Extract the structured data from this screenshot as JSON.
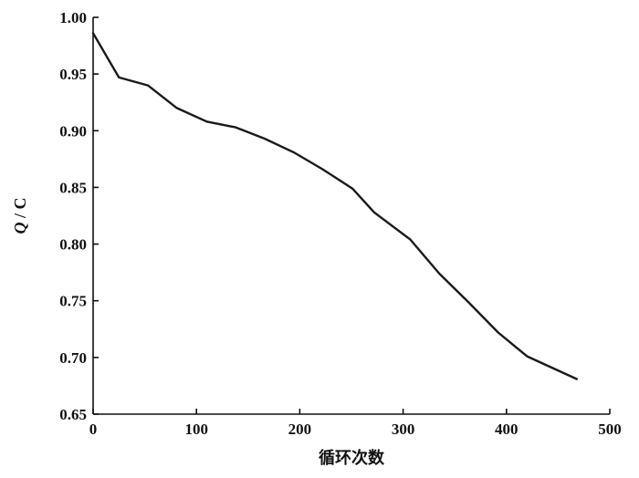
{
  "chart_data": {
    "type": "line",
    "title": "",
    "xlabel": "循环次数",
    "ylabel_italic": "Q",
    "ylabel_unit": " / C",
    "xlim": [
      0,
      500
    ],
    "ylim": [
      0.65,
      1.0
    ],
    "xticks": [
      {
        "value": 0,
        "label": "0"
      },
      {
        "value": 100,
        "label": "100"
      },
      {
        "value": 200,
        "label": "200"
      },
      {
        "value": 300,
        "label": "300"
      },
      {
        "value": 400,
        "label": "400"
      },
      {
        "value": 500,
        "label": "500"
      }
    ],
    "yticks": [
      {
        "value": 0.65,
        "label": "0.65"
      },
      {
        "value": 0.7,
        "label": "0.70"
      },
      {
        "value": 0.75,
        "label": "0.75"
      },
      {
        "value": 0.8,
        "label": "0.80"
      },
      {
        "value": 0.85,
        "label": "0.85"
      },
      {
        "value": 0.9,
        "label": "0.90"
      },
      {
        "value": 0.95,
        "label": "0.95"
      },
      {
        "value": 1.0,
        "label": "1.00"
      }
    ],
    "grid": false,
    "line_color": "#1a1a1a",
    "series": [
      {
        "x": [
          0,
          25,
          53,
          81,
          110,
          138,
          166,
          194,
          222,
          251,
          272,
          307,
          335,
          363,
          392,
          420,
          468
        ],
        "y": [
          0.986,
          0.947,
          0.94,
          0.92,
          0.908,
          0.903,
          0.893,
          0.881,
          0.866,
          0.849,
          0.828,
          0.804,
          0.774,
          0.749,
          0.722,
          0.701,
          0.681
        ]
      }
    ]
  }
}
